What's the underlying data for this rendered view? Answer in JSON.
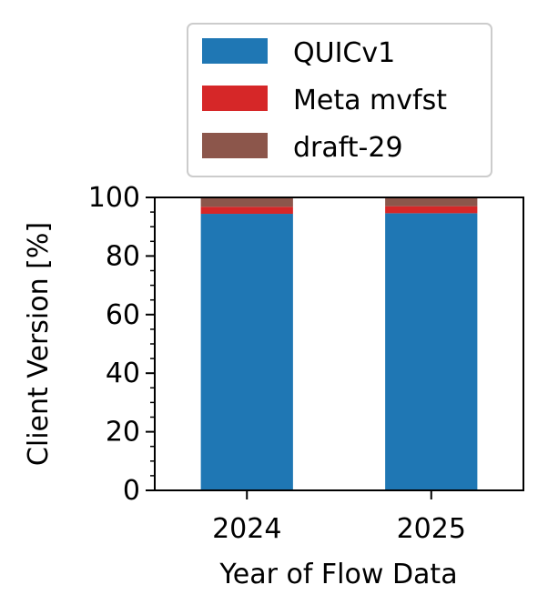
{
  "chart_data": {
    "type": "bar",
    "stacked": true,
    "categories": [
      "2024",
      "2025"
    ],
    "series": [
      {
        "name": "QUICv1",
        "color": "#1f77b4",
        "values": [
          94.4,
          94.6
        ]
      },
      {
        "name": "Meta mvfst",
        "color": "#d62728",
        "values": [
          2.4,
          2.4
        ]
      },
      {
        "name": "draft-29",
        "color": "#8c564b",
        "values": [
          3.2,
          3.0
        ]
      }
    ],
    "xlabel": "Year of Flow Data",
    "ylabel": "Client Version [%]",
    "ylim": [
      0,
      100
    ],
    "yticks": [
      "0",
      "20",
      "40",
      "60",
      "80",
      "100"
    ],
    "grid": false,
    "legend_position": "top"
  }
}
